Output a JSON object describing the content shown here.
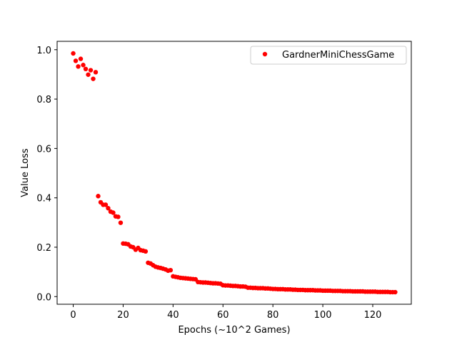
{
  "chart_data": {
    "type": "scatter",
    "title": "",
    "xlabel": "Epochs (~10^2 Games)",
    "ylabel": "Value Loss",
    "xlim": [
      -6.45,
      135.45
    ],
    "ylim": [
      -0.031,
      1.034
    ],
    "xticks": [
      0,
      20,
      40,
      60,
      80,
      100,
      120
    ],
    "yticks": [
      0.0,
      0.2,
      0.4,
      0.6,
      0.8,
      1.0
    ],
    "xtick_labels": [
      "0",
      "20",
      "40",
      "60",
      "80",
      "100",
      "120"
    ],
    "ytick_labels": [
      "0.0",
      "0.2",
      "0.4",
      "0.6",
      "0.8",
      "1.0"
    ],
    "grid": false,
    "legend_position": "top-right",
    "marker_color": "#ff0000",
    "series": [
      {
        "name": "GardnerMiniChessGame",
        "color": "#ff0000",
        "x": [
          0,
          1,
          2,
          3,
          4,
          5,
          6,
          7,
          8,
          9,
          10,
          11,
          12,
          13,
          14,
          15,
          16,
          17,
          18,
          19,
          20,
          21,
          22,
          23,
          24,
          25,
          26,
          27,
          28,
          29,
          30,
          31,
          32,
          33,
          34,
          35,
          36,
          37,
          38,
          39,
          40,
          41,
          42,
          43,
          44,
          45,
          46,
          47,
          48,
          49,
          50,
          51,
          52,
          53,
          54,
          55,
          56,
          57,
          58,
          59,
          60,
          61,
          62,
          63,
          64,
          65,
          66,
          67,
          68,
          69,
          70,
          71,
          72,
          73,
          74,
          75,
          76,
          77,
          78,
          79,
          80,
          81,
          82,
          83,
          84,
          85,
          86,
          87,
          88,
          89,
          90,
          91,
          92,
          93,
          94,
          95,
          96,
          97,
          98,
          99,
          100,
          101,
          102,
          103,
          104,
          105,
          106,
          107,
          108,
          109,
          110,
          111,
          112,
          113,
          114,
          115,
          116,
          117,
          118,
          119,
          120,
          121,
          122,
          123,
          124,
          125,
          126,
          127,
          128,
          129
        ],
        "y": [
          0.985,
          0.955,
          0.932,
          0.963,
          0.938,
          0.922,
          0.899,
          0.917,
          0.882,
          0.909,
          0.407,
          0.382,
          0.372,
          0.372,
          0.358,
          0.344,
          0.34,
          0.325,
          0.323,
          0.299,
          0.215,
          0.214,
          0.212,
          0.203,
          0.2,
          0.19,
          0.197,
          0.188,
          0.186,
          0.183,
          0.137,
          0.134,
          0.127,
          0.121,
          0.118,
          0.116,
          0.113,
          0.11,
          0.105,
          0.107,
          0.082,
          0.08,
          0.078,
          0.076,
          0.075,
          0.074,
          0.073,
          0.072,
          0.071,
          0.07,
          0.059,
          0.058,
          0.057,
          0.057,
          0.056,
          0.055,
          0.054,
          0.054,
          0.053,
          0.052,
          0.046,
          0.045,
          0.045,
          0.044,
          0.043,
          0.043,
          0.042,
          0.041,
          0.041,
          0.04,
          0.036,
          0.036,
          0.035,
          0.035,
          0.034,
          0.034,
          0.034,
          0.033,
          0.033,
          0.032,
          0.031,
          0.031,
          0.03,
          0.03,
          0.03,
          0.029,
          0.029,
          0.029,
          0.028,
          0.028,
          0.027,
          0.027,
          0.027,
          0.026,
          0.026,
          0.026,
          0.026,
          0.025,
          0.025,
          0.025,
          0.024,
          0.024,
          0.024,
          0.024,
          0.023,
          0.023,
          0.023,
          0.023,
          0.022,
          0.022,
          0.022,
          0.022,
          0.021,
          0.021,
          0.021,
          0.021,
          0.021,
          0.02,
          0.02,
          0.02,
          0.02,
          0.02,
          0.019,
          0.019,
          0.019,
          0.019,
          0.019,
          0.018,
          0.018,
          0.018
        ]
      }
    ]
  }
}
